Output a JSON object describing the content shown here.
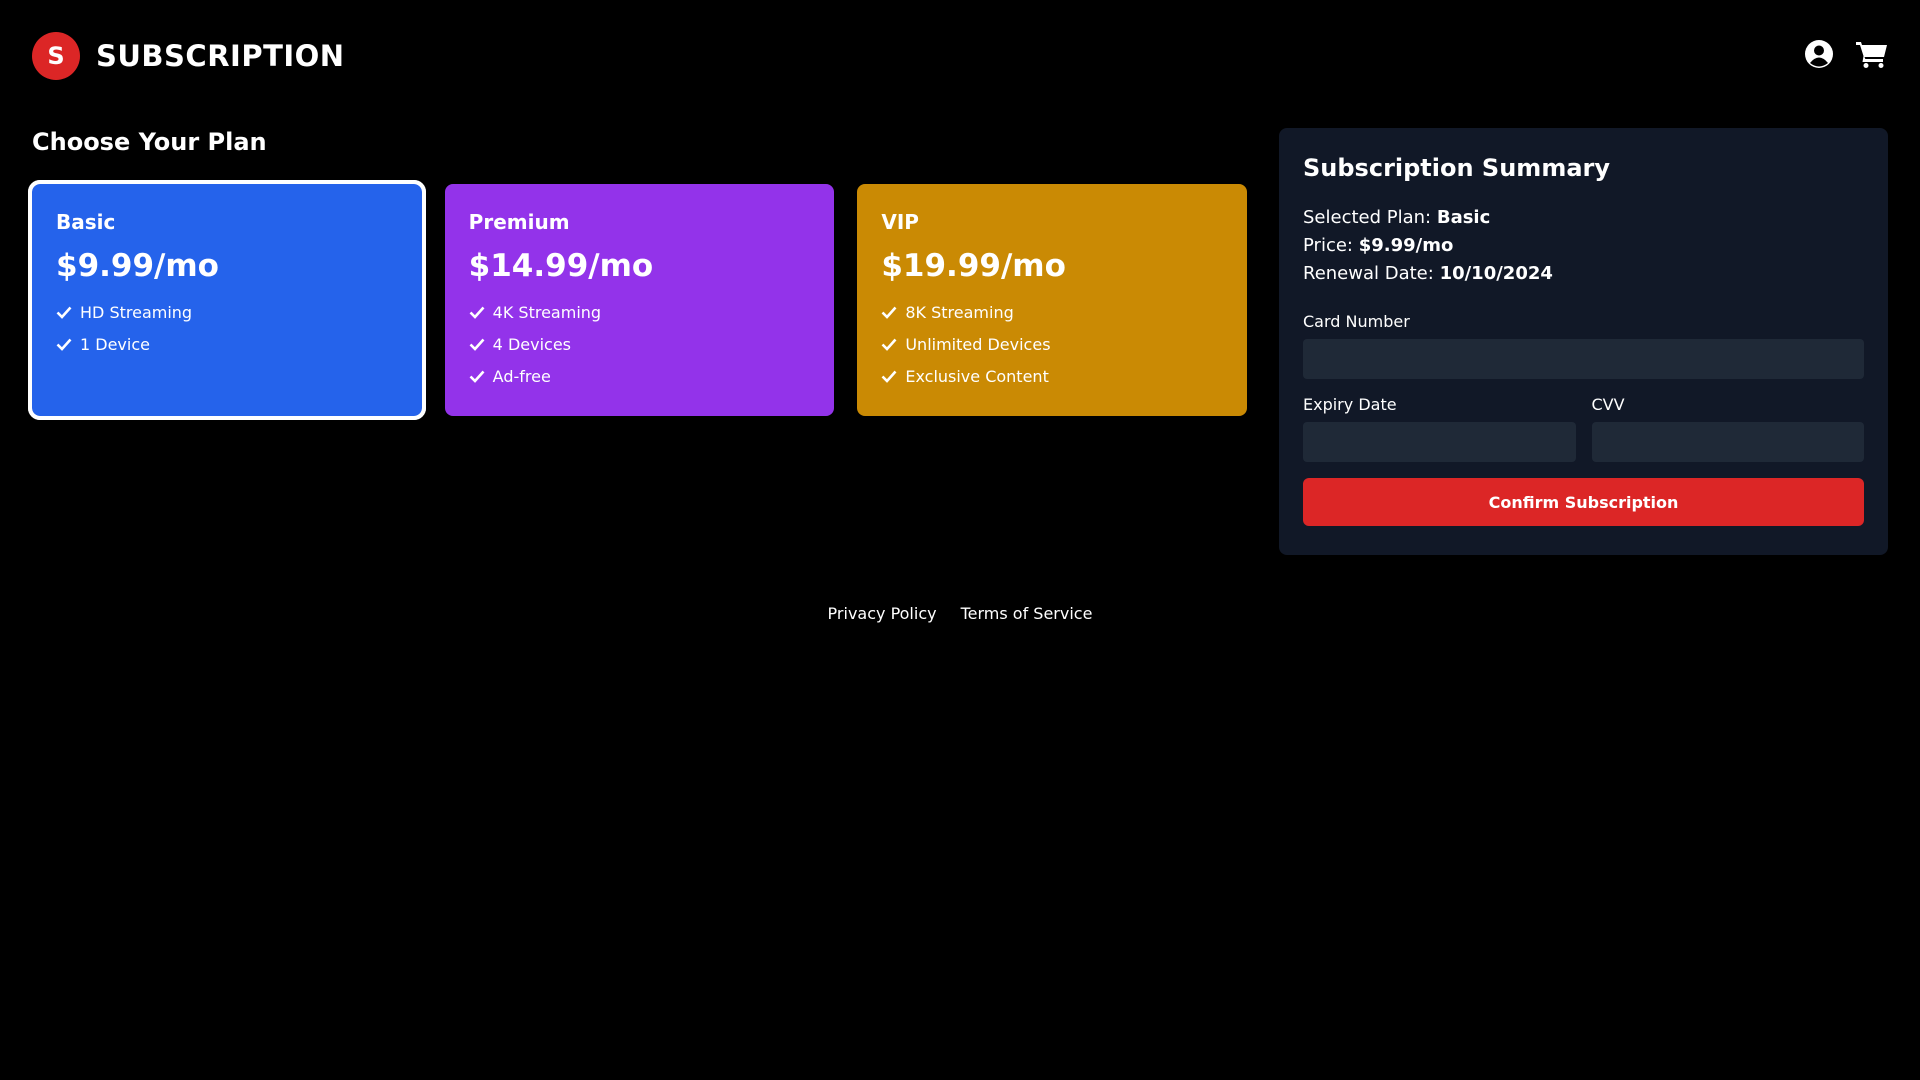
{
  "header": {
    "logo_letter": "S",
    "title": "SUBSCRIPTION",
    "icons": [
      "user-circle-icon",
      "cart-icon"
    ]
  },
  "plans_title": "Choose Your Plan",
  "plans": [
    {
      "name": "Basic",
      "price": "$9.99/mo",
      "color": "#2563eb",
      "selected": true,
      "features": [
        "HD Streaming",
        "1 Device"
      ]
    },
    {
      "name": "Premium",
      "price": "$14.99/mo",
      "color": "#9333ea",
      "selected": false,
      "features": [
        "4K Streaming",
        "4 Devices",
        "Ad-free"
      ]
    },
    {
      "name": "VIP",
      "price": "$19.99/mo",
      "color": "#ca8a04",
      "selected": false,
      "features": [
        "8K Streaming",
        "Unlimited Devices",
        "Exclusive Content"
      ]
    }
  ],
  "summary": {
    "title": "Subscription Summary",
    "selected_label": "Selected Plan:",
    "selected_value": "Basic",
    "price_label": "Price:",
    "price_value": "$9.99/mo",
    "renewal_label": "Renewal Date:",
    "renewal_value": "10/10/2024",
    "card_number_label": "Card Number",
    "card_number_value": "",
    "expiry_label": "Expiry Date",
    "expiry_value": "",
    "cvv_label": "CVV",
    "cvv_value": "",
    "confirm_label": "Confirm Subscription"
  },
  "footer": {
    "links": [
      "Privacy Policy",
      "Terms of Service"
    ]
  }
}
